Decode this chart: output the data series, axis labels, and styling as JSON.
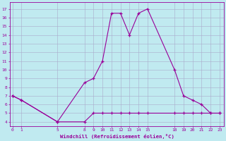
{
  "x": [
    0,
    1,
    5,
    8,
    9,
    10,
    11,
    12,
    13,
    14,
    15,
    18,
    19,
    20,
    21,
    22,
    23
  ],
  "y_top": [
    7.0,
    6.5,
    4.0,
    8.5,
    9.0,
    11.0,
    16.5,
    16.5,
    14.0,
    16.5,
    17.0,
    10.0,
    7.0,
    6.5,
    6.0,
    5.0,
    5.0
  ],
  "y_bot": [
    7.0,
    6.5,
    4.0,
    4.0,
    5.0,
    5.0,
    5.0,
    5.0,
    5.0,
    5.0,
    5.0,
    5.0,
    5.0,
    5.0,
    5.0,
    5.0,
    5.0
  ],
  "line_color": "#990099",
  "bg_color": "#c0eaf0",
  "grid_color": "#aaaacc",
  "xlabel": "Windchill (Refroidissement éolien,°C)",
  "xticks": [
    0,
    1,
    5,
    8,
    9,
    10,
    11,
    12,
    13,
    14,
    15,
    18,
    19,
    20,
    21,
    22,
    23
  ],
  "yticks": [
    4,
    5,
    6,
    7,
    8,
    9,
    10,
    11,
    12,
    13,
    14,
    15,
    16,
    17
  ],
  "ylim": [
    3.5,
    17.8
  ],
  "xlim": [
    -0.3,
    23.5
  ]
}
